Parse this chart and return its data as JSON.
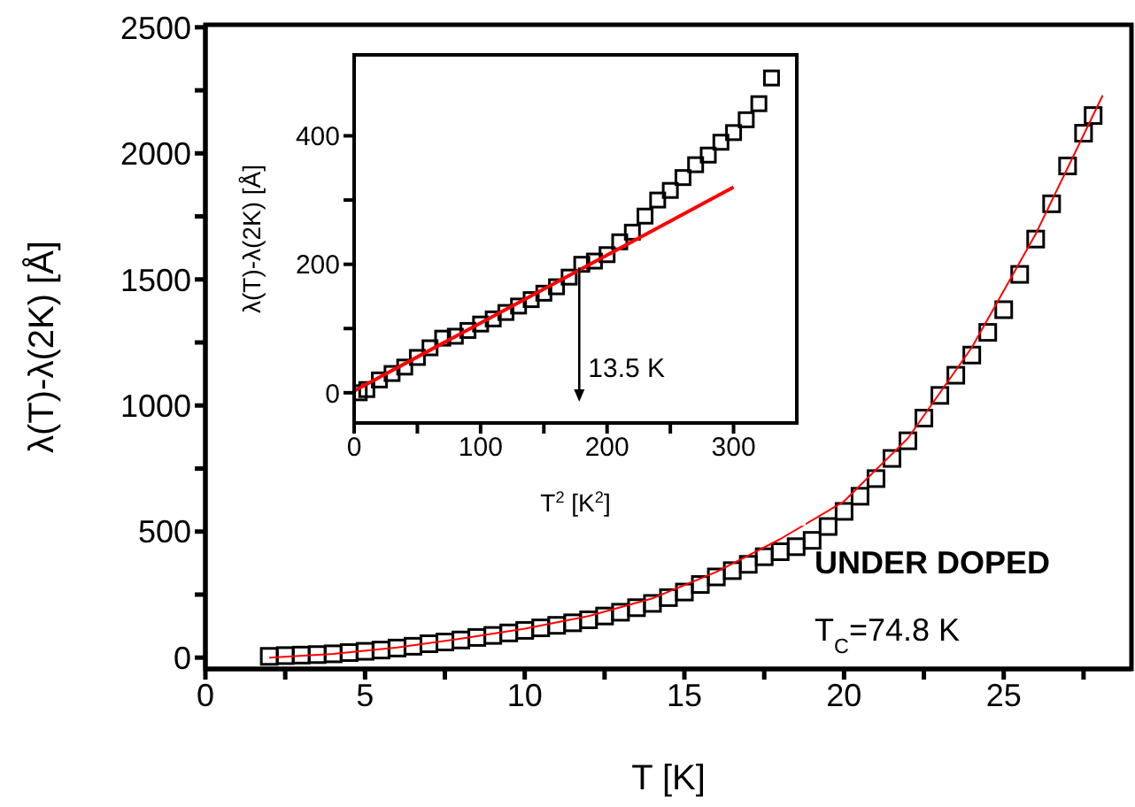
{
  "chart_data": [
    {
      "type": "scatter",
      "xlabel": "T [K]",
      "ylabel": "λ(T)-λ(2K) [Å]",
      "xlim": [
        0,
        29
      ],
      "ylim": [
        -45,
        2510
      ],
      "xticks": [
        0,
        {
          "value": 2.5,
          "label": null
        },
        5,
        {
          "value": 7.5,
          "label": null
        },
        10,
        {
          "value": 12.5,
          "label": null
        },
        15,
        {
          "value": 17.5,
          "label": null
        },
        20,
        {
          "value": 22.5,
          "label": null
        },
        25,
        {
          "value": 27.5,
          "label": null
        }
      ],
      "yticks": [
        0,
        {
          "value": 250,
          "label": null
        },
        500,
        {
          "value": 750,
          "label": null
        },
        1000,
        {
          "value": 1250,
          "label": null
        },
        1500,
        {
          "value": 1750,
          "label": null
        },
        2000,
        {
          "value": 2250,
          "label": null
        },
        2500
      ],
      "annotations": [
        "UNDER DOPED",
        "T$_{C}$=74.8 K"
      ],
      "series": [
        {
          "marker": "square",
          "color": "#000000",
          "x": [
            2,
            2.5,
            3,
            3.5,
            4,
            4.5,
            5,
            5.5,
            6,
            6.5,
            7,
            7.5,
            8,
            8.5,
            9,
            9.5,
            10,
            10.5,
            11,
            11.5,
            12,
            12.5,
            13,
            13.5,
            14,
            14.5,
            15,
            15.5,
            16,
            16.5,
            17,
            17.5,
            18,
            18.5,
            19,
            19.5,
            20,
            20.5,
            21,
            21.5,
            22,
            22.5,
            23,
            23.5,
            24,
            24.5,
            25,
            25.5,
            26,
            26.5,
            27,
            27.5,
            27.8
          ],
          "values": [
            5,
            8,
            10,
            12,
            15,
            20,
            25,
            30,
            38,
            45,
            55,
            62,
            70,
            80,
            88,
            98,
            108,
            118,
            128,
            138,
            150,
            165,
            180,
            198,
            215,
            238,
            260,
            290,
            320,
            345,
            370,
            400,
            420,
            440,
            465,
            520,
            580,
            640,
            710,
            790,
            860,
            950,
            1040,
            1120,
            1200,
            1290,
            1380,
            1520,
            1660,
            1800,
            1950,
            2080,
            2150
          ]
        },
        {
          "type": "line",
          "marker": "none",
          "color": "#ff0000",
          "x": [
            2,
            4,
            6,
            8,
            10,
            12,
            14,
            16,
            18,
            20,
            22,
            24,
            26,
            28.1
          ],
          "values": [
            0,
            15,
            40,
            75,
            115,
            165,
            235,
            340,
            470,
            620,
            870,
            1230,
            1680,
            2230
          ]
        }
      ]
    },
    {
      "type": "scatter",
      "xlabel": "T$^{2}$ [K$^{2}$]",
      "ylabel": "λ(T)-λ(2K) [Å]",
      "xlim": [
        0,
        350
      ],
      "ylim": [
        -47,
        526
      ],
      "xticks": [
        0,
        {
          "value": 50,
          "label": null
        },
        100,
        {
          "value": 150,
          "label": null
        },
        200,
        {
          "value": 250,
          "label": null
        },
        300
      ],
      "yticks": [
        0,
        {
          "value": 100,
          "label": null
        },
        200,
        {
          "value": 300,
          "label": null
        },
        400
      ],
      "annotations": [
        {
          "text": "13.5 K",
          "x": 178,
          "y": 195
        }
      ],
      "series": [
        {
          "marker": "square",
          "color": "#000000",
          "x": [
            4,
            10,
            20,
            30,
            40,
            50,
            60,
            70,
            80,
            90,
            100,
            110,
            120,
            130,
            140,
            150,
            160,
            170,
            180,
            190,
            200,
            210,
            220,
            230,
            240,
            250,
            260,
            270,
            280,
            290,
            300,
            310,
            320,
            330
          ],
          "values": [
            0,
            5,
            20,
            30,
            40,
            55,
            70,
            85,
            88,
            97,
            107,
            115,
            125,
            135,
            145,
            155,
            165,
            180,
            200,
            205,
            215,
            235,
            250,
            275,
            300,
            315,
            335,
            355,
            370,
            390,
            405,
            425,
            450,
            490
          ]
        },
        {
          "type": "line",
          "marker": "none",
          "color": "#ff0000",
          "x": [
            0,
            300
          ],
          "values": [
            3,
            320
          ]
        }
      ]
    }
  ]
}
